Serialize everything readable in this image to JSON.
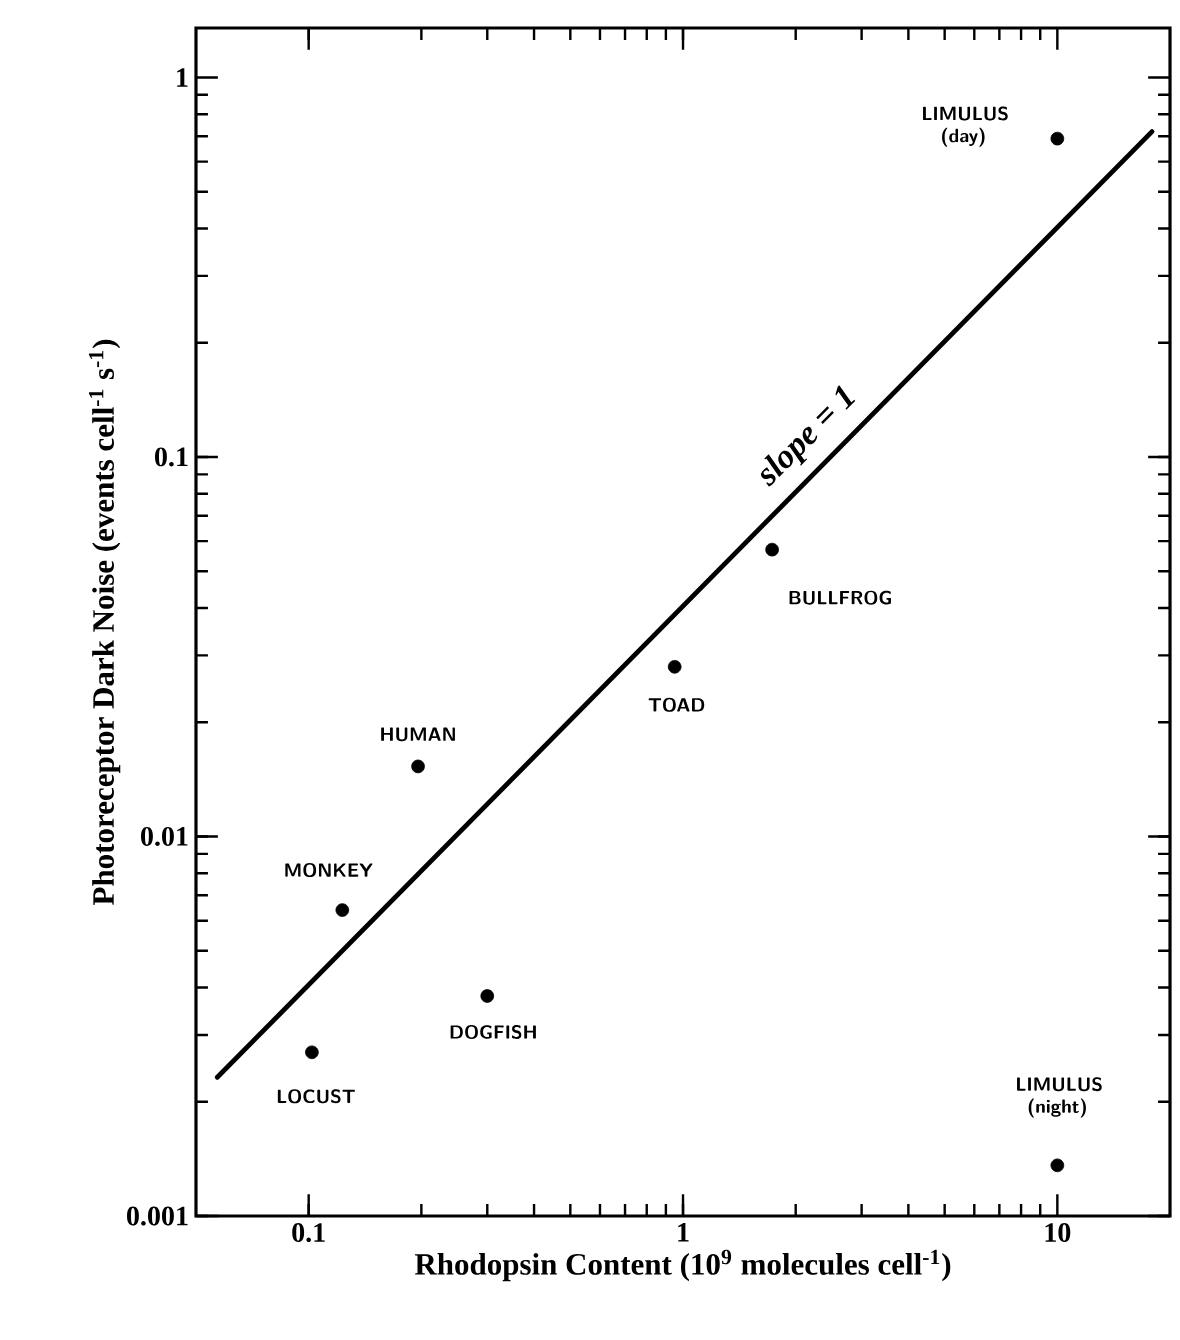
{
  "chart_data": {
    "type": "scatter",
    "xlabel": "Rhodopsin Content (10$^{9}$ molecules cell$^{-1}$)",
    "ylabel": "Photoreceptor Dark Noise (events cell$^{-1}$ s$^{-1}$)",
    "log": "xy",
    "xlim": [
      0.05,
      20
    ],
    "ylim": [
      0.001,
      1.35
    ],
    "xticks": [
      0.1,
      1,
      10
    ],
    "yticks": [
      0.001,
      0.01,
      0.1,
      1
    ],
    "series": [
      {
        "color": "#000000",
        "marker": "circle",
        "x": [
          10,
          1.73,
          0.95,
          0.196,
          0.123,
          0.3,
          0.102,
          10
        ],
        "values": [
          0.69,
          0.057,
          0.028,
          0.0153,
          0.0064,
          0.0038,
          0.0027,
          0.00136
        ]
      },
      {
        "type": "line",
        "color": "#000000",
        "line_style": "solid",
        "x": [
          0.057,
          17.9
        ],
        "values": [
          0.00232,
          0.72
        ]
      }
    ],
    "annotations": [
      {
        "text": "LIMULUS (day)",
        "x": 10,
        "y": 0.69
      },
      {
        "text": "BULLFROG",
        "x": 1.73,
        "y": 0.057
      },
      {
        "text": "TOAD",
        "x": 0.95,
        "y": 0.028
      },
      {
        "text": "HUMAN",
        "x": 0.196,
        "y": 0.0153
      },
      {
        "text": "MONKEY",
        "x": 0.123,
        "y": 0.0064
      },
      {
        "text": "DOGFISH",
        "x": 0.3,
        "y": 0.0038
      },
      {
        "text": "LOCUST",
        "x": 0.102,
        "y": 0.0027
      },
      {
        "text": "LIMULUS (night)",
        "x": 10,
        "y": 0.00136
      },
      {
        "text": "slope = 1",
        "x": 2.52,
        "y": 0.113
      }
    ]
  }
}
